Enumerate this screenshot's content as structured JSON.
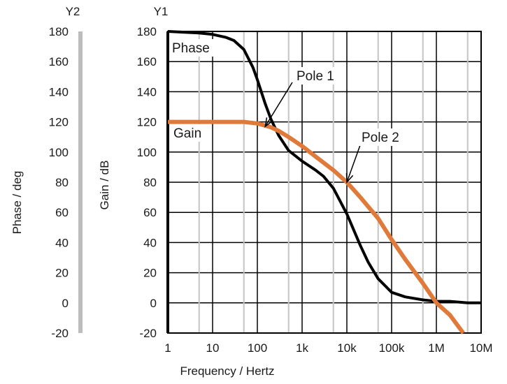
{
  "chart_data": {
    "type": "line",
    "axes": {
      "y1": {
        "header": "Y1",
        "label": "Gain / dB",
        "range": [
          -20,
          180
        ],
        "ticks": [
          "180",
          "160",
          "140",
          "120",
          "100",
          "80",
          "60",
          "40",
          "20",
          "0",
          "-20"
        ]
      },
      "y2": {
        "header": "Y2",
        "label": "Phase / deg",
        "range": [
          -20,
          180
        ],
        "ticks": [
          "180",
          "160",
          "140",
          "120",
          "100",
          "80",
          "60",
          "40",
          "20",
          "0",
          "-20"
        ]
      },
      "x": {
        "label": "Frequency / Hertz",
        "scale": "log",
        "range": [
          1,
          10000000
        ],
        "ticks": [
          "1",
          "10",
          "100",
          "1k",
          "10k",
          "100k",
          "1M",
          "10M"
        ]
      }
    },
    "grid": true,
    "series": [
      {
        "name": "Phase",
        "color": "#000000",
        "x": [
          1,
          5,
          10,
          20,
          30,
          50,
          80,
          100,
          150,
          200,
          300,
          500,
          1000,
          2000,
          3000,
          5000,
          10000,
          20000,
          30000,
          50000,
          100000,
          200000,
          500000,
          1000000,
          2000000,
          5000000,
          10000000
        ],
        "y": [
          180,
          179,
          178,
          176,
          174,
          168,
          156,
          148,
          132,
          122,
          111,
          101,
          94,
          88,
          84,
          76,
          59,
          38,
          27,
          16,
          7,
          4,
          2,
          1,
          1,
          0,
          0
        ]
      },
      {
        "name": "Gain",
        "color": "#e07a3a",
        "x": [
          1,
          10,
          50,
          70,
          100,
          150,
          200,
          300,
          500,
          1000,
          2000,
          5000,
          10000,
          20000,
          50000,
          100000,
          200000,
          500000,
          1000000,
          2000000,
          4000000
        ],
        "y": [
          120,
          120,
          120,
          119.5,
          119,
          117.5,
          116.5,
          114,
          110,
          104,
          97,
          88,
          80,
          70,
          56,
          42,
          29,
          13,
          0,
          -8,
          -20
        ]
      }
    ],
    "annotations": [
      {
        "text": "Pole 1",
        "x": 150,
        "y": 117
      },
      {
        "text": "Pole 2",
        "x": 10000,
        "y": 80
      }
    ]
  }
}
